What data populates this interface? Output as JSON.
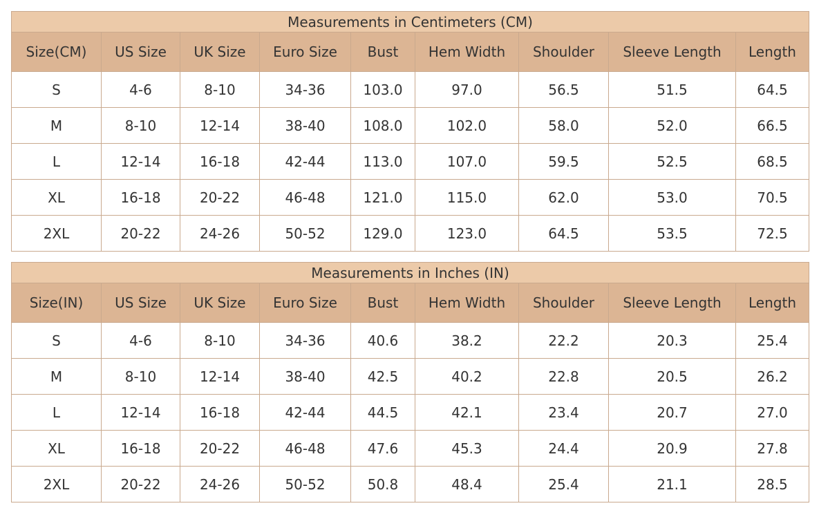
{
  "tables": [
    {
      "title": "Measurements in Centimeters (CM)",
      "headers": [
        "Size(CM)",
        "US Size",
        "UK Size",
        "Euro Size",
        "Bust",
        "Hem Width",
        "Shoulder",
        "Sleeve Length",
        "Length"
      ],
      "rows": [
        [
          "S",
          "4-6",
          "8-10",
          "34-36",
          "103.0",
          "97.0",
          "56.5",
          "51.5",
          "64.5"
        ],
        [
          "M",
          "8-10",
          "12-14",
          "38-40",
          "108.0",
          "102.0",
          "58.0",
          "52.0",
          "66.5"
        ],
        [
          "L",
          "12-14",
          "16-18",
          "42-44",
          "113.0",
          "107.0",
          "59.5",
          "52.5",
          "68.5"
        ],
        [
          "XL",
          "16-18",
          "20-22",
          "46-48",
          "121.0",
          "115.0",
          "62.0",
          "53.0",
          "70.5"
        ],
        [
          "2XL",
          "20-22",
          "24-26",
          "50-52",
          "129.0",
          "123.0",
          "64.5",
          "53.5",
          "72.5"
        ]
      ]
    },
    {
      "title": "Measurements in Inches (IN)",
      "headers": [
        "Size(IN)",
        "US Size",
        "UK Size",
        "Euro Size",
        "Bust",
        "Hem Width",
        "Shoulder",
        "Sleeve Length",
        "Length"
      ],
      "rows": [
        [
          "S",
          "4-6",
          "8-10",
          "34-36",
          "40.6",
          "38.2",
          "22.2",
          "20.3",
          "25.4"
        ],
        [
          "M",
          "8-10",
          "12-14",
          "38-40",
          "42.5",
          "40.2",
          "22.8",
          "20.5",
          "26.2"
        ],
        [
          "L",
          "12-14",
          "16-18",
          "42-44",
          "44.5",
          "42.1",
          "23.4",
          "20.7",
          "27.0"
        ],
        [
          "XL",
          "16-18",
          "20-22",
          "46-48",
          "47.6",
          "45.3",
          "24.4",
          "20.9",
          "27.8"
        ],
        [
          "2XL",
          "20-22",
          "24-26",
          "50-52",
          "50.8",
          "48.4",
          "25.4",
          "21.1",
          "28.5"
        ]
      ]
    }
  ]
}
